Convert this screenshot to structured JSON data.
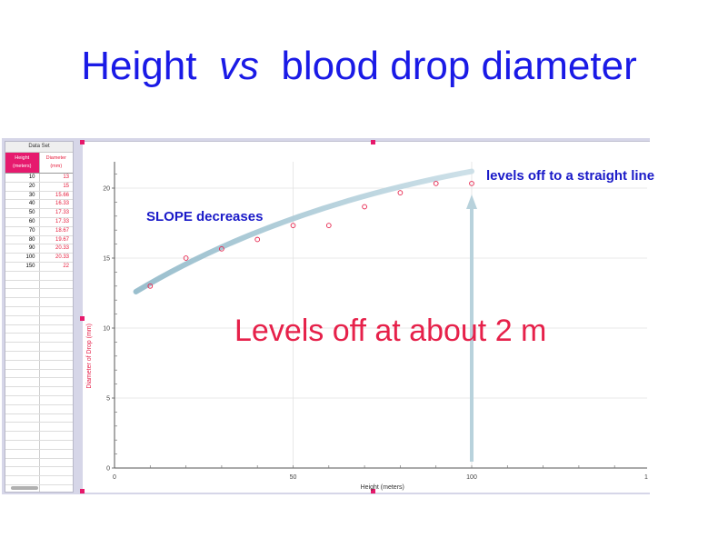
{
  "slide": {
    "title_part1": "Height",
    "title_vs": "vs",
    "title_part2": "blood drop diameter"
  },
  "data_table": {
    "title": "Data Set",
    "col1_header": "Height (meters)",
    "col2_header": "Diameter (mm)",
    "rows": [
      [
        "10",
        "13"
      ],
      [
        "20",
        "15"
      ],
      [
        "30",
        "15.66"
      ],
      [
        "40",
        "16.33"
      ],
      [
        "50",
        "17.33"
      ],
      [
        "60",
        "17.33"
      ],
      [
        "70",
        "18.67"
      ],
      [
        "80",
        "19.67"
      ],
      [
        "90",
        "20.33"
      ],
      [
        "100",
        "20.33"
      ],
      [
        "150",
        "22"
      ]
    ]
  },
  "chart_data": {
    "type": "scatter",
    "x": [
      10,
      20,
      30,
      40,
      50,
      60,
      70,
      80,
      90,
      100
    ],
    "y": [
      13,
      15,
      15.66,
      16.33,
      17.33,
      17.33,
      18.67,
      19.67,
      20.33,
      20.33
    ],
    "xlabel": "Height (meters)",
    "ylabel": "Diameter of Drop (mm)",
    "xlim": [
      0,
      150
    ],
    "ylim": [
      0,
      22
    ],
    "x_ticks": [
      "0",
      "50",
      "100",
      "1"
    ],
    "y_ticks": [
      "0",
      "5",
      "10",
      "15",
      "20"
    ],
    "grid": true,
    "point_color": "#e6214a"
  },
  "annotations": {
    "levels_off": "Levels off at about 2 m",
    "slope": "SLOPE decreases",
    "straight_line": "levels off to a straight line"
  },
  "colors": {
    "title": "#1a1ae6",
    "annotation_blue": "#1a1ac8",
    "annotation_red": "#e6214a",
    "accent": "#e6196b"
  }
}
